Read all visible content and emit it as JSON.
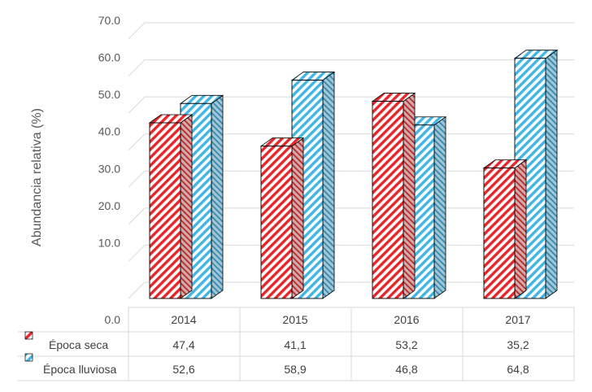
{
  "chart_data": {
    "type": "bar",
    "ylabel": "Abundancia relativa (%)",
    "y_ticks": [
      "0.0",
      "10.0",
      "20.0",
      "30.0",
      "40.0",
      "50.0",
      "60.0",
      "70.0"
    ],
    "ylim": [
      0,
      70
    ],
    "categories": [
      "2014",
      "2015",
      "2016",
      "2017"
    ],
    "series": [
      {
        "name": "Época seca",
        "values": [
          47.4,
          41.1,
          53.2,
          35.2
        ],
        "labels": [
          "47,4",
          "41,1",
          "53,2",
          "35,2"
        ],
        "color": "#e8262a"
      },
      {
        "name": "Época lluviosa",
        "values": [
          52.6,
          58.9,
          46.8,
          64.8
        ],
        "labels": [
          "52,6",
          "58,9",
          "46,8",
          "64,8"
        ],
        "color": "#3fb6e6"
      }
    ],
    "grid": true,
    "legend": "data-table",
    "style": "3d-clustered-column-hatched"
  }
}
